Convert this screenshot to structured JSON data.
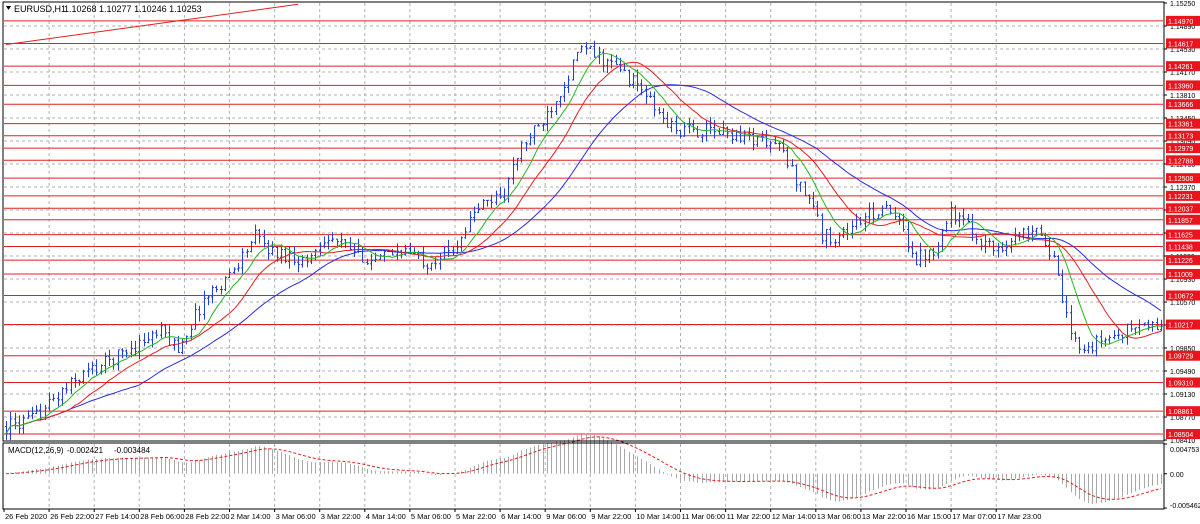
{
  "header": {
    "symbol_label": "EURUSD,H1",
    "ohlc": "1.10268 1.10277 1.10246 1.10253"
  },
  "macd_panel": {
    "label": "MACD(12,26,9)",
    "macd_value": "-0.002421",
    "signal_value": "-0.003484",
    "axis_ticks": [
      "0.004753",
      "0.00",
      "-0.005462"
    ],
    "range": [
      -0.005462,
      0.004753
    ]
  },
  "colors": {
    "candles": "#2240d8",
    "level_line": "#e02020",
    "ma_fast": "#22b822",
    "ma_mid": "#e02020",
    "ma_slow": "#2a2ae0",
    "macd_hist": "#a8a8a8",
    "macd_signal": "#e02020",
    "badge": "#e8141e",
    "badge_text": "#ffffff",
    "grid": "#b0b0b0",
    "frame": "#000000"
  },
  "chart_data": {
    "type": "candlestick",
    "timeframe": "H1",
    "ylim": [
      1.0841,
      1.1525
    ],
    "y_axis_ticks": [
      "1.15250",
      "1.14890",
      "1.14530",
      "1.14170",
      "1.13810",
      "1.13450",
      "1.13090",
      "1.12730",
      "1.12370",
      "1.12010",
      "1.11650",
      "1.11290",
      "1.10930",
      "1.10570",
      "1.10210",
      "1.09850",
      "1.09490",
      "1.09130",
      "1.08770",
      "1.08410"
    ],
    "x_axis_labels": [
      "26 Feb 2020",
      "26 Feb 22:00",
      "27 Feb 14:00",
      "28 Feb 06:00",
      "28 Feb 22:00",
      "2 Mar 14:00",
      "3 Mar 06:00",
      "3 Mar 22:00",
      "4 Mar 14:00",
      "5 Mar 06:00",
      "5 Mar 22:00",
      "6 Mar 14:00",
      "9 Mar 06:00",
      "9 Mar 22:00",
      "10 Mar 14:00",
      "11 Mar 06:00",
      "11 Mar 22:00",
      "12 Mar 14:00",
      "13 Mar 06:00",
      "13 Mar 22:00",
      "16 Mar 15:00",
      "17 Mar 07:00",
      "17 Mar 23:00"
    ],
    "horizontal_levels": [
      "1.14970",
      "1.14617",
      "1.14261",
      "1.13960",
      "1.13666",
      "1.13361",
      "1.13173",
      "1.12979",
      "1.12788",
      "1.12508",
      "1.12231",
      "1.12037",
      "1.11857",
      "1.11625",
      "1.11438",
      "1.11226",
      "1.11009",
      "1.10672",
      "1.10217",
      "1.09729",
      "1.09310",
      "1.08861",
      "1.08504"
    ],
    "trendline": [
      [
        0,
        1.146
      ],
      [
        68,
        1.1523
      ]
    ],
    "close_path": [
      [
        0,
        1.0862
      ],
      [
        6,
        1.0872
      ],
      [
        12,
        1.091
      ],
      [
        18,
        1.0945
      ],
      [
        24,
        1.0965
      ],
      [
        30,
        1.099
      ],
      [
        36,
        1.101
      ],
      [
        40,
        1.0985
      ],
      [
        46,
        1.106
      ],
      [
        52,
        1.11
      ],
      [
        58,
        1.116
      ],
      [
        62,
        1.1135
      ],
      [
        66,
        1.113
      ],
      [
        70,
        1.112
      ],
      [
        74,
        1.116
      ],
      [
        80,
        1.114
      ],
      [
        86,
        1.112
      ],
      [
        92,
        1.114
      ],
      [
        98,
        1.112
      ],
      [
        104,
        1.114
      ],
      [
        110,
        1.1205
      ],
      [
        116,
        1.123
      ],
      [
        120,
        1.13
      ],
      [
        124,
        1.133
      ],
      [
        130,
        1.14
      ],
      [
        134,
        1.1455
      ],
      [
        138,
        1.144
      ],
      [
        143,
        1.142
      ],
      [
        148,
        1.139
      ],
      [
        152,
        1.135
      ],
      [
        156,
        1.1325
      ],
      [
        164,
        1.1325
      ],
      [
        170,
        1.132
      ],
      [
        176,
        1.131
      ],
      [
        180,
        1.13
      ],
      [
        184,
        1.125
      ],
      [
        188,
        1.121
      ],
      [
        190,
        1.116
      ],
      [
        194,
        1.116
      ],
      [
        198,
        1.118
      ],
      [
        204,
        1.1205
      ],
      [
        208,
        1.118
      ],
      [
        212,
        1.1125
      ],
      [
        216,
        1.114
      ],
      [
        220,
        1.12
      ],
      [
        226,
        1.116
      ],
      [
        230,
        1.114
      ],
      [
        236,
        1.116
      ],
      [
        240,
        1.118
      ],
      [
        244,
        1.112
      ],
      [
        248,
        1.1
      ],
      [
        252,
        1.0985
      ],
      [
        256,
        1.1
      ],
      [
        260,
        1.101
      ],
      [
        264,
        1.102
      ],
      [
        268,
        1.1018
      ]
    ]
  }
}
